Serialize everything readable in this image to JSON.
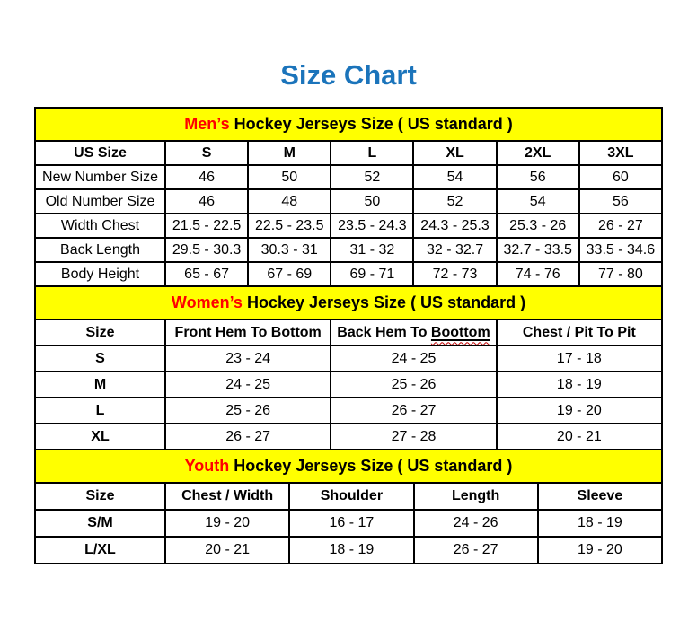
{
  "page": {
    "title": "Size Chart",
    "colors": {
      "title_blue": "#1B74BB",
      "section_background": "#FFFF00",
      "section_accent_red": "#FF0000",
      "border_black": "#000000",
      "squiggle_red": "#C00000"
    }
  },
  "chart_data": [
    {
      "type": "table",
      "title_accent": "Men’s",
      "title_rest": " Hockey Jerseys Size ( US standard )",
      "columns": [
        "US Size",
        "S",
        "M",
        "L",
        "XL",
        "2XL",
        "3XL"
      ],
      "rows": [
        [
          "New Number Size",
          "46",
          "50",
          "52",
          "54",
          "56",
          "60"
        ],
        [
          "Old Number Size",
          "46",
          "48",
          "50",
          "52",
          "54",
          "56"
        ],
        [
          "Width Chest",
          "21.5 - 22.5",
          "22.5 - 23.5",
          "23.5 - 24.3",
          "24.3 - 25.3",
          "25.3 - 26",
          "26 - 27"
        ],
        [
          "Back Length",
          "29.5 - 30.3",
          "30.3 - 31",
          "31 - 32",
          "32 - 32.7",
          "32.7 - 33.5",
          "33.5 - 34.6"
        ],
        [
          "Body Height",
          "65 - 67",
          "67 - 69",
          "69 - 71",
          "72 - 73",
          "74 - 76",
          "77 - 80"
        ]
      ]
    },
    {
      "type": "table",
      "title_accent": "Women’s",
      "title_rest": " Hockey Jerseys Size ( US standard )",
      "columns": [
        "Size",
        "Front Hem To Bottom",
        "Back Hem To Boottom",
        "Chest / Pit To Pit"
      ],
      "back_hem_header": {
        "prefix": "Back Hem To ",
        "misspelled_word": "Boottom"
      },
      "rows": [
        [
          "S",
          "23 - 24",
          "24 - 25",
          "17 - 18"
        ],
        [
          "M",
          "24 - 25",
          "25 - 26",
          "18 - 19"
        ],
        [
          "L",
          "25 - 26",
          "26 - 27",
          "19 - 20"
        ],
        [
          "XL",
          "26 - 27",
          "27 - 28",
          "20 - 21"
        ]
      ]
    },
    {
      "type": "table",
      "title_accent": "Youth",
      "title_rest": " Hockey Jerseys Size ( US standard )",
      "columns": [
        "Size",
        "Chest / Width",
        "Shoulder",
        "Length",
        "Sleeve"
      ],
      "rows": [
        [
          "S/M",
          "19 - 20",
          "16 - 17",
          "24 - 26",
          "18 - 19"
        ],
        [
          "L/XL",
          "20 - 21",
          "18 - 19",
          "26 - 27",
          "19 - 20"
        ]
      ]
    }
  ]
}
